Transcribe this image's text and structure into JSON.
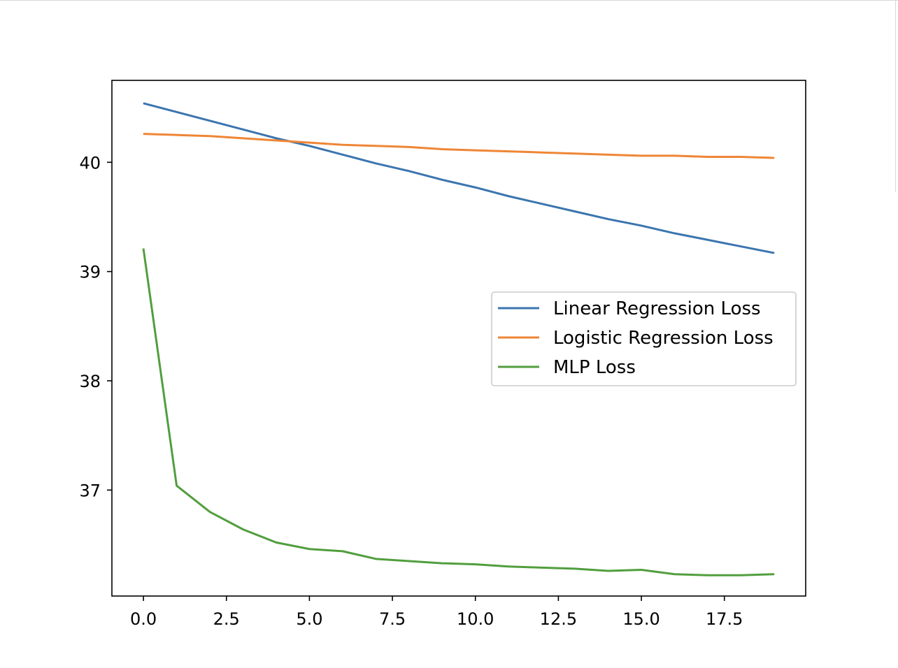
{
  "chart_data": {
    "type": "line",
    "title": "",
    "xlabel": "",
    "ylabel": "",
    "xlim": [
      -0.95,
      19.95
    ],
    "ylim": [
      36.03,
      40.75
    ],
    "x_ticks": [
      0,
      2.5,
      5,
      7.5,
      10,
      12.5,
      15,
      17.5
    ],
    "x_tick_labels": [
      "0.0",
      "2.5",
      "5.0",
      "7.5",
      "10.0",
      "12.5",
      "15.0",
      "17.5"
    ],
    "y_ticks": [
      37,
      38,
      39,
      40
    ],
    "y_tick_labels": [
      "37",
      "38",
      "39",
      "40"
    ],
    "grid": false,
    "legend_position": "center-right",
    "x": [
      0,
      1,
      2,
      3,
      4,
      5,
      6,
      7,
      8,
      9,
      10,
      11,
      12,
      13,
      14,
      15,
      16,
      17,
      18,
      19
    ],
    "series": [
      {
        "name": "Linear Regression Loss",
        "color": "#3b75af",
        "values": [
          40.54,
          40.46,
          40.38,
          40.3,
          40.22,
          40.15,
          40.07,
          39.99,
          39.92,
          39.84,
          39.77,
          39.69,
          39.62,
          39.55,
          39.48,
          39.42,
          39.35,
          39.29,
          39.23,
          39.17
        ]
      },
      {
        "name": "Logistic Regression Loss",
        "color": "#ef8636",
        "values": [
          40.26,
          40.25,
          40.24,
          40.22,
          40.2,
          40.18,
          40.16,
          40.15,
          40.14,
          40.12,
          40.11,
          40.1,
          40.09,
          40.08,
          40.07,
          40.06,
          40.06,
          40.05,
          40.05,
          40.04
        ]
      },
      {
        "name": "MLP Loss",
        "color": "#519e3e",
        "values": [
          39.21,
          37.04,
          36.8,
          36.64,
          36.52,
          36.46,
          36.44,
          36.37,
          36.35,
          36.33,
          36.32,
          36.3,
          36.29,
          36.28,
          36.26,
          36.27,
          36.23,
          36.22,
          36.22,
          36.23
        ]
      }
    ]
  }
}
